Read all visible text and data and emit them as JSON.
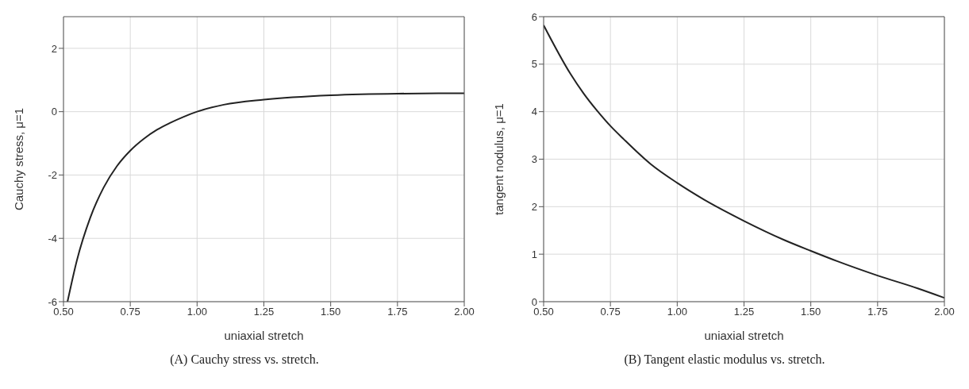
{
  "chart_data": [
    {
      "type": "line",
      "xlabel": "uniaxial stretch",
      "ylabel": "Cauchy stress, μ=1",
      "x": [
        0.515,
        0.55,
        0.6,
        0.65,
        0.7,
        0.75,
        0.8,
        0.85,
        0.9,
        0.95,
        1.0,
        1.1,
        1.25,
        1.5,
        1.75,
        2.0
      ],
      "series": [
        {
          "color": "#222222",
          "values": [
            -6,
            -4.7,
            -3.35,
            -2.4,
            -1.72,
            -1.23,
            -0.86,
            -0.57,
            -0.35,
            -0.16,
            0,
            0.22,
            0.38,
            0.52,
            0.57,
            0.58
          ]
        }
      ],
      "xlim": [
        0.5,
        2.0
      ],
      "ylim": [
        -6,
        3
      ],
      "xticks": [
        {
          "value": 0.5,
          "label": "0.50"
        },
        {
          "value": 0.75,
          "label": "0.75"
        },
        {
          "value": 1.0,
          "label": "1.00"
        },
        {
          "value": 1.25,
          "label": "1.25"
        },
        {
          "value": 1.5,
          "label": "1.50"
        },
        {
          "value": 1.75,
          "label": "1.75"
        },
        {
          "value": 2.0,
          "label": "2.00"
        }
      ],
      "yticks": [
        -6,
        -4,
        -2,
        0,
        2
      ],
      "grid": true,
      "marker": "none",
      "line_style": "solid",
      "annotations": [
        "(A) Cauchy stress vs. stretch."
      ]
    },
    {
      "type": "line",
      "xlabel": "uniaxial stretch",
      "ylabel": "tangent nodulus, μ=1",
      "x": [
        0.5,
        0.6,
        0.65,
        0.7,
        0.75,
        0.8,
        0.9,
        1.0,
        1.1,
        1.25,
        1.4,
        1.5,
        1.6,
        1.75,
        1.9,
        2.0
      ],
      "series": [
        {
          "color": "#222222",
          "values": [
            5.82,
            4.8,
            4.38,
            4.02,
            3.7,
            3.42,
            2.9,
            2.5,
            2.15,
            1.7,
            1.3,
            1.07,
            0.85,
            0.55,
            0.28,
            0.08
          ]
        }
      ],
      "xlim": [
        0.5,
        2.0
      ],
      "ylim": [
        0,
        6
      ],
      "xticks": [
        {
          "value": 0.5,
          "label": "0.50"
        },
        {
          "value": 0.75,
          "label": "0.75"
        },
        {
          "value": 1.0,
          "label": "1.00"
        },
        {
          "value": 1.25,
          "label": "1.25"
        },
        {
          "value": 1.5,
          "label": "1.50"
        },
        {
          "value": 1.75,
          "label": "1.75"
        },
        {
          "value": 2.0,
          "label": "2.00"
        }
      ],
      "yticks": [
        0,
        1,
        2,
        3,
        4,
        5,
        6
      ],
      "grid": true,
      "marker": "none",
      "line_style": "solid",
      "annotations": [
        "(B) Tangent elastic modulus vs. stretch."
      ]
    }
  ]
}
